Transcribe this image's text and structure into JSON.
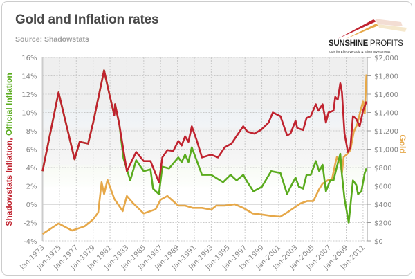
{
  "header": {
    "title": "Gold and Inflation rates",
    "subtitle": "Source: Shadowstats"
  },
  "logo": {
    "name_bold": "SUNSHINE",
    "name_regular": " PROFITS",
    "tagline": "Tools for Effective Gold & Silver Investments"
  },
  "colors": {
    "shadowstats": "#c0232f",
    "official": "#5aab1e",
    "gold": "#e6a849"
  },
  "chart_data": {
    "type": "line",
    "title": "Gold and Inflation rates",
    "subtitle": "Source: Shadowstats",
    "x_tick_labels": [
      "Jan-1973",
      "Jan-1975",
      "Jan-1977",
      "Jan-1979",
      "Jan-1981",
      "Jan-1983",
      "Jan-1985",
      "Jan-1987",
      "Jan-1989",
      "Jan-1991",
      "Jan-1993",
      "Jan-1995",
      "Jan-1997",
      "Jan-1999",
      "Jan-2001",
      "Jan-2003",
      "Jan-2005",
      "Jan-2007",
      "Jan-2009",
      "Jan-2011"
    ],
    "xlim": [
      1973,
      2011.5
    ],
    "y_left": {
      "label_part1": "Shadowstats Inflation",
      "label_separator": ", ",
      "label_part2": "Official Inflation",
      "ylim": [
        -4,
        16
      ],
      "tick_labels": [
        "-4%",
        "-2%",
        "0%",
        "2%",
        "4%",
        "6%",
        "8%",
        "10%",
        "12%",
        "14%",
        "16%"
      ]
    },
    "y_right": {
      "label": "Gold",
      "ylim": [
        0,
        2000
      ],
      "tick_labels": [
        "$0",
        "$200",
        "$400",
        "$600",
        "$800",
        "$1,000",
        "$1,200",
        "$1,400",
        "$1,600",
        "$1,800",
        "$2,000"
      ]
    },
    "grid": true,
    "series": [
      {
        "axis": "left",
        "color": "#5aab1e",
        "x": [
          1973.0,
          1974.9,
          1976.8,
          1977.4,
          1978.4,
          1979.0,
          1980.3,
          1980.8,
          1981.5,
          1981.6,
          1982.1,
          1982.6,
          1983.4,
          1984.1,
          1985.0,
          1985.8,
          1986.1,
          1986.8,
          1987.2,
          1988.0,
          1989.1,
          1989.5,
          1989.9,
          1990.3,
          1990.7,
          1991.3,
          1991.9,
          1993.0,
          1994.4,
          1995.3,
          1996.0,
          1996.8,
          1997.3,
          1998.0,
          1999.0,
          2000.1,
          2001.2,
          2002.0,
          2002.3,
          2003.0,
          2003.4,
          2003.9,
          2004.3,
          2004.8,
          2005.4,
          2005.8,
          2006.2,
          2006.6,
          2007.1,
          2007.5,
          2007.9,
          2008.3,
          2008.5,
          2008.8,
          2009.3,
          2009.8,
          2010.2,
          2010.4,
          2010.8,
          2011.2,
          2011.4
        ],
        "y": [
          3.6,
          12.2,
          4.9,
          6.8,
          6.6,
          8.9,
          14.6,
          12.5,
          9.7,
          10.9,
          8.7,
          5.0,
          2.6,
          4.8,
          3.6,
          3.8,
          1.7,
          1.1,
          4.1,
          3.9,
          5.1,
          4.6,
          5.4,
          4.6,
          6.2,
          4.7,
          3.2,
          3.2,
          2.4,
          3.2,
          2.6,
          3.2,
          2.4,
          1.4,
          1.9,
          3.6,
          3.4,
          1.1,
          1.7,
          2.9,
          1.9,
          1.7,
          3.2,
          3.2,
          4.7,
          3.6,
          4.3,
          1.4,
          2.6,
          2.6,
          4.1,
          5.5,
          3.2,
          0.6,
          -2.0,
          2.6,
          2.1,
          1.1,
          1.4,
          3.4,
          3.9
        ]
      },
      {
        "axis": "left",
        "color": "#c0232f",
        "x": [
          1973.0,
          1974.9,
          1976.8,
          1977.4,
          1978.4,
          1979.0,
          1980.3,
          1980.8,
          1981.5,
          1981.6,
          1982.1,
          1983.0,
          1984.1,
          1985.0,
          1985.8,
          1986.8,
          1987.2,
          1987.8,
          1988.5,
          1989.1,
          1989.5,
          1989.9,
          1990.3,
          1990.7,
          1991.3,
          1991.9,
          1993.0,
          1993.8,
          1994.6,
          1995.4,
          1996.2,
          1996.8,
          1997.3,
          1998.1,
          1998.9,
          1999.8,
          2000.3,
          2001.2,
          2002.0,
          2002.4,
          2003.0,
          2003.2,
          2003.9,
          2004.3,
          2004.8,
          2005.4,
          2005.7,
          2006.2,
          2006.6,
          2006.9,
          2007.5,
          2007.7,
          2008.0,
          2008.3,
          2008.5,
          2008.8,
          2009.2,
          2009.5,
          2009.8,
          2010.2,
          2010.6,
          2011.0,
          2011.4
        ],
        "y": [
          3.6,
          12.2,
          4.9,
          6.8,
          6.6,
          8.9,
          14.6,
          12.5,
          9.7,
          10.9,
          8.7,
          3.6,
          5.7,
          4.7,
          4.7,
          2.4,
          5.1,
          5.9,
          5.8,
          6.9,
          6.4,
          7.4,
          6.8,
          8.5,
          6.9,
          5.1,
          5.4,
          5.1,
          6.2,
          6.6,
          7.7,
          8.5,
          7.9,
          7.7,
          8.1,
          8.9,
          10.0,
          9.6,
          7.5,
          7.7,
          9.1,
          8.3,
          8.1,
          9.4,
          9.6,
          10.9,
          10.2,
          10.9,
          8.9,
          10.0,
          10.2,
          11.7,
          11.4,
          13.2,
          12.2,
          7.7,
          5.7,
          6.2,
          9.6,
          9.3,
          8.5,
          10.2,
          11.2
        ]
      },
      {
        "axis": "right",
        "color": "#e6a849",
        "x": [
          1973.0,
          1974.9,
          1976.5,
          1978.0,
          1979.0,
          1979.6,
          1980.0,
          1980.3,
          1980.7,
          1981.5,
          1982.5,
          1983.0,
          1983.7,
          1985.0,
          1986.4,
          1987.0,
          1987.8,
          1989.1,
          1989.9,
          1990.8,
          1991.9,
          1993.0,
          1993.6,
          1994.6,
          1995.8,
          1996.8,
          1997.9,
          1999.2,
          2000.3,
          2001.2,
          2002.0,
          2002.8,
          2003.6,
          2004.4,
          2005.1,
          2005.8,
          2006.2,
          2006.9,
          2007.3,
          2007.7,
          2007.9,
          2008.3,
          2008.5,
          2008.7,
          2009.1,
          2009.5,
          2009.9,
          2010.3,
          2010.7,
          2011.0,
          2011.2,
          2011.4
        ],
        "y": [
          75,
          190,
          113,
          160,
          235,
          310,
          640,
          510,
          665,
          460,
          325,
          490,
          415,
          300,
          345,
          450,
          490,
          385,
          385,
          360,
          360,
          340,
          385,
          385,
          400,
          360,
          300,
          285,
          270,
          265,
          310,
          360,
          410,
          435,
          435,
          565,
          625,
          665,
          665,
          840,
          915,
          840,
          740,
          915,
          945,
          990,
          1190,
          1270,
          1420,
          1520,
          1390,
          1815
        ]
      }
    ]
  }
}
